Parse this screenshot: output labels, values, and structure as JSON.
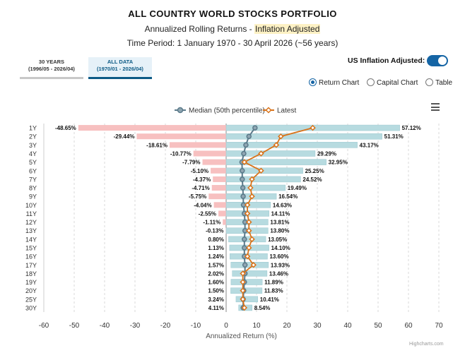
{
  "header": {
    "title": "ALL COUNTRY WORLD STOCKS PORTFOLIO",
    "subtitle_prefix": "Annualized Rolling Returns - ",
    "subtitle_highlight": "Inflation Adjusted",
    "period": "Time Period: 1 January 1970 - 30 April 2026 (~56 years)"
  },
  "tabs": [
    {
      "line1": "30 YEARS",
      "line2": "(1996/05 - 2026/04)",
      "selected": false
    },
    {
      "line1": "ALL DATA",
      "line2": "(1970/01 - 2026/04)",
      "selected": true
    }
  ],
  "inflation_toggle": {
    "label": "US Inflation Adjusted:",
    "on": true
  },
  "view_options": {
    "return_chart": "Return Chart",
    "capital_chart": "Capital Chart",
    "table": "Table",
    "selected": "Return Chart"
  },
  "colors": {
    "positive_bar": "#b7dbe0",
    "negative_bar": "#f7c0c0",
    "median": "#5b7a8a",
    "latest": "#d9731a"
  },
  "credit": "Highcharts.com",
  "chart_data": {
    "type": "bar",
    "orientation": "horizontal",
    "categories": [
      "1Y",
      "2Y",
      "3Y",
      "4Y",
      "5Y",
      "6Y",
      "7Y",
      "8Y",
      "9Y",
      "10Y",
      "11Y",
      "12Y",
      "13Y",
      "14Y",
      "15Y",
      "16Y",
      "17Y",
      "18Y",
      "19Y",
      "20Y",
      "25Y",
      "30Y"
    ],
    "min": [
      -48.65,
      -29.44,
      -18.61,
      -10.77,
      -7.79,
      -5.1,
      -4.37,
      -4.71,
      -5.75,
      -4.04,
      -2.55,
      -1.11,
      -0.13,
      0.8,
      1.13,
      1.24,
      1.57,
      2.02,
      1.6,
      1.5,
      3.24,
      4.11
    ],
    "max": [
      57.12,
      51.31,
      43.17,
      29.29,
      32.95,
      25.25,
      24.52,
      19.49,
      16.54,
      14.63,
      14.11,
      13.81,
      13.8,
      13.05,
      14.1,
      13.6,
      13.93,
      13.46,
      11.89,
      11.83,
      10.41,
      8.54
    ],
    "min_labels": [
      "-48.65%",
      "-29.44%",
      "-18.61%",
      "-10.77%",
      "-7.79%",
      "-5.10%",
      "-4.37%",
      "-4.71%",
      "-5.75%",
      "-4.04%",
      "-2.55%",
      "-1.11%",
      "-0.13%",
      "0.80%",
      "1.13%",
      "1.24%",
      "1.57%",
      "2.02%",
      "1.60%",
      "1.50%",
      "3.24%",
      "4.11%"
    ],
    "max_labels": [
      "57.12%",
      "51.31%",
      "43.17%",
      "29.29%",
      "32.95%",
      "25.25%",
      "24.52%",
      "19.49%",
      "16.54%",
      "14.63%",
      "14.11%",
      "13.81%",
      "13.80%",
      "13.05%",
      "14.10%",
      "13.60%",
      "13.93%",
      "13.46%",
      "11.89%",
      "11.83%",
      "10.41%",
      "8.54%"
    ],
    "series": [
      {
        "name": "Median (50th percentile)",
        "values": [
          9.5,
          7.5,
          6.5,
          5.8,
          5.2,
          5.3,
          5.3,
          5.5,
          5.6,
          5.7,
          6.0,
          6.2,
          6.2,
          6.0,
          6.0,
          6.0,
          6.2,
          6.2,
          6.0,
          5.8,
          5.6,
          5.6
        ]
      },
      {
        "name": "Latest",
        "values": [
          28.5,
          18.0,
          16.5,
          11.5,
          6.0,
          11.5,
          8.5,
          8.0,
          8.5,
          7.0,
          7.0,
          7.5,
          7.5,
          8.5,
          7.5,
          7.0,
          9.0,
          5.5,
          5.5,
          5.5,
          5.5,
          6.0
        ]
      }
    ],
    "xlabel": "Annualized Return (%)",
    "xlim": [
      -60,
      70
    ],
    "ticks": [
      "-60",
      "-50",
      "-40",
      "-30",
      "-20",
      "-10",
      "0",
      "10",
      "20",
      "30",
      "40",
      "50",
      "60",
      "70"
    ],
    "grid": true,
    "legend_position": "top-center"
  }
}
